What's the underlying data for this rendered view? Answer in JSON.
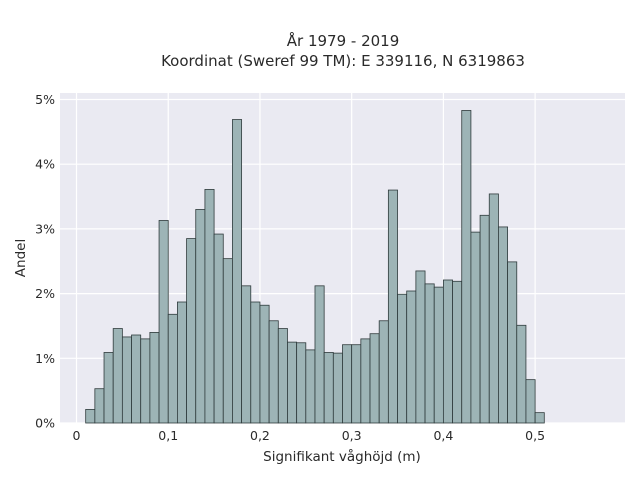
{
  "chart_data": {
    "type": "bar",
    "title_lines": [
      "År 1979 - 2019",
      "Koordinat (Sweref 99 TM): E 339116, N 6319863"
    ],
    "xlabel": "Signifikant våghöjd (m)",
    "ylabel": "Andel",
    "xlim": [
      -0.018,
      0.598
    ],
    "ylim": [
      0,
      5.1
    ],
    "bin_width": 0.01,
    "bin_start": 0.01,
    "x_ticks": [
      {
        "value": 0,
        "label": "0"
      },
      {
        "value": 0.1,
        "label": "0,1"
      },
      {
        "value": 0.2,
        "label": "0,2"
      },
      {
        "value": 0.3,
        "label": "0,3"
      },
      {
        "value": 0.4,
        "label": "0,4"
      },
      {
        "value": 0.5,
        "label": "0,5"
      }
    ],
    "y_ticks": [
      {
        "value": 0,
        "label": "0%"
      },
      {
        "value": 1,
        "label": "1%"
      },
      {
        "value": 2,
        "label": "2%"
      },
      {
        "value": 3,
        "label": "3%"
      },
      {
        "value": 4,
        "label": "4%"
      },
      {
        "value": 5,
        "label": "5%"
      }
    ],
    "values": [
      0.21,
      0.53,
      1.09,
      1.46,
      1.33,
      1.36,
      1.3,
      1.4,
      3.13,
      1.68,
      1.87,
      2.85,
      3.3,
      3.61,
      2.92,
      2.54,
      4.69,
      2.12,
      1.87,
      1.82,
      1.58,
      1.46,
      1.25,
      1.24,
      1.13,
      2.12,
      1.09,
      1.08,
      1.21,
      1.21,
      1.3,
      1.38,
      1.58,
      3.6,
      1.99,
      2.04,
      2.35,
      2.15,
      2.1,
      2.21,
      2.19,
      4.83,
      2.95,
      3.21,
      3.54,
      3.03,
      2.49,
      1.51,
      0.67,
      0.16
    ],
    "grid": true,
    "colors": {
      "background": "#eaeaf2",
      "grid": "#ffffff",
      "bar_fill": "#9db4b6",
      "bar_edge": "#2f3b3c"
    }
  }
}
